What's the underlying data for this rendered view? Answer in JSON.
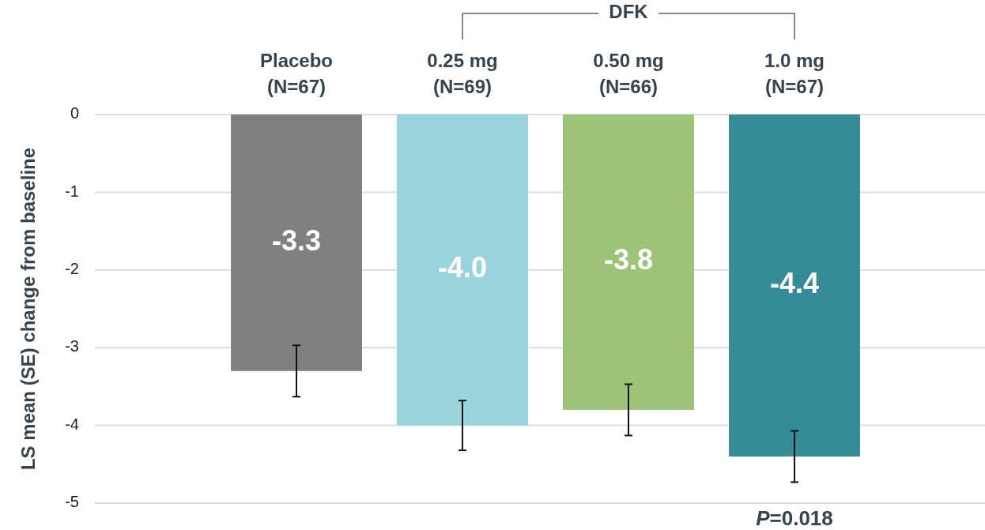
{
  "chart_data": {
    "type": "bar",
    "ylabel": "LS mean (SE) change from baseline",
    "categories": [
      "Placebo\n(N=67)",
      "0.25 mg\n(N=69)",
      "0.50 mg\n(N=66)",
      "1.0 mg\n(N=67)"
    ],
    "values": [
      -3.3,
      -4.0,
      -3.8,
      -4.4
    ],
    "colors": [
      "#808080",
      "#99d3dc",
      "#9dc377",
      "#368c96"
    ],
    "errors": [
      0.33,
      0.32,
      0.33,
      0.33
    ],
    "value_labels": [
      "-3.3",
      "-4.0",
      "-3.8",
      "-4.4"
    ],
    "ylim": [
      -5,
      0
    ],
    "yticks": [
      0,
      -1,
      -2,
      -3,
      -4,
      -5
    ],
    "grid": "y",
    "annotations": [
      "DFK",
      "P=0.018"
    ]
  }
}
